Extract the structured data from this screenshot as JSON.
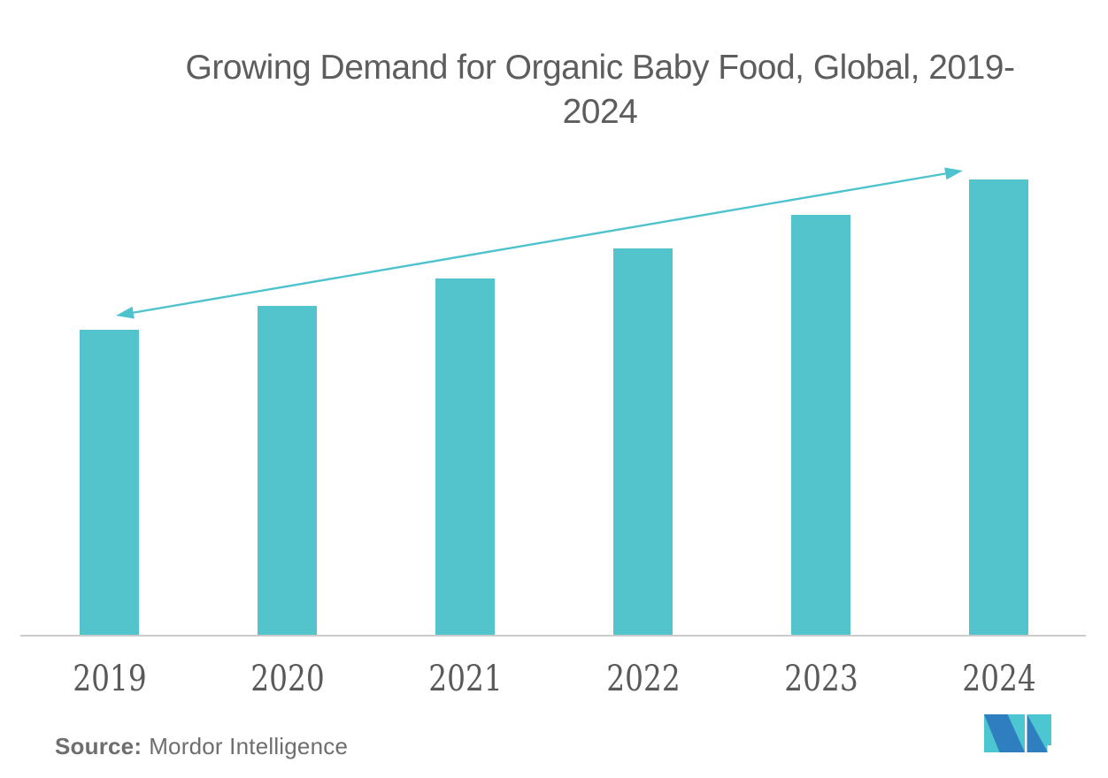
{
  "page": {
    "background": "#ffffff"
  },
  "header": {
    "title": "Growing Demand for Organic Baby Food, Global, 2019-2024",
    "title_line1": "Growing Demand for Organic Baby Food, Global, 2019-",
    "title_line2": "2024",
    "title_color": "#5D5D5D"
  },
  "chart_data": {
    "type": "bar",
    "title": "Growing Demand for Organic Baby Food, Global, 2019-2024",
    "categories": [
      "2019",
      "2020",
      "2021",
      "2022",
      "2023",
      "2024"
    ],
    "values": [
      100,
      107.8,
      116.8,
      126.7,
      137.8,
      149.3
    ],
    "values_note": "No y-axis is shown in the figure; values are relative bar heights indexed to 2019 = 100",
    "xlabel": "",
    "ylabel": "",
    "grid": false,
    "legend": false,
    "bar_color": "#53C4CC",
    "axis_line_color": "#CBCBCB",
    "tick_label_color": "#595959",
    "trend_arrow": {
      "style": "double-headed",
      "from_category": "2019",
      "to_category": "2024",
      "color": "#4EC3CD"
    }
  },
  "footer": {
    "source_label": "Source:",
    "source_value": "Mordor Intelligence",
    "source_color": "#6E6E6E",
    "logo_name": "mordor-intelligence-logo",
    "logo_teal": "#4CC7D2",
    "logo_blue": "#2F7EC0"
  }
}
